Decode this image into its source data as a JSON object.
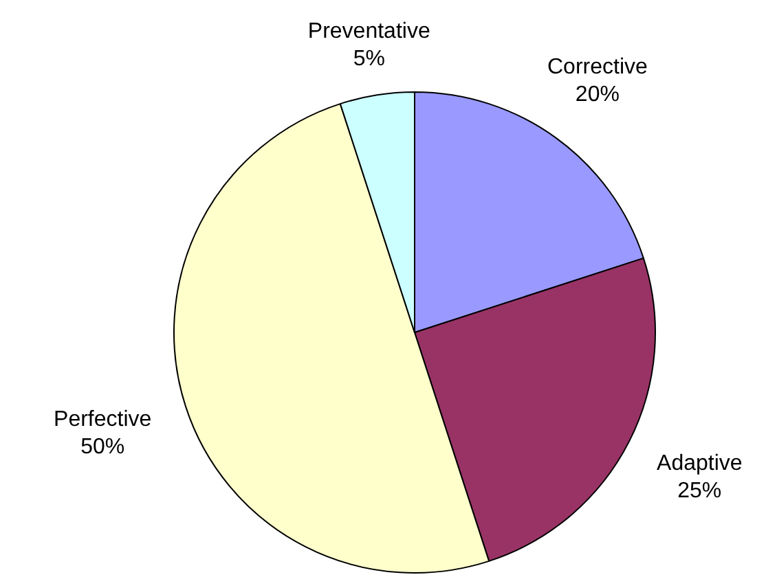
{
  "chart_data": {
    "type": "pie",
    "categories": [
      "Corrective",
      "Adaptive",
      "Perfective",
      "Preventative"
    ],
    "values": [
      20,
      25,
      50,
      5
    ],
    "colors": [
      "#9999ff",
      "#993366",
      "#ffffcc",
      "#ccffff"
    ],
    "value_labels": [
      "20%",
      "25%",
      "50%",
      "5%"
    ],
    "legend": false
  }
}
